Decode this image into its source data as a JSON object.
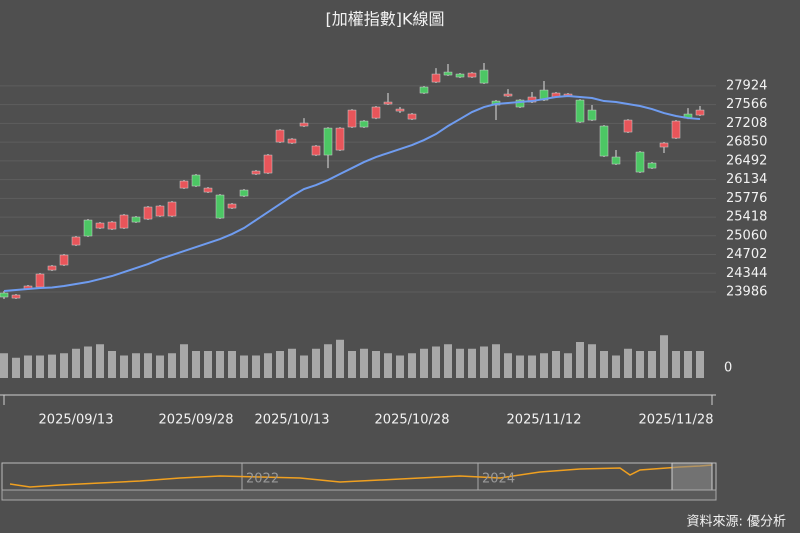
{
  "chart_data": {
    "type": "candlestick",
    "title": "[加權指數]K線圖",
    "source": "資料來源: 優分析",
    "categories": [
      null,
      null,
      null,
      null,
      null,
      null,
      "2025/09/13",
      null,
      null,
      null,
      null,
      null,
      null,
      null,
      null,
      null,
      "2025/09/28",
      null,
      null,
      null,
      null,
      null,
      null,
      null,
      "2025/10/13",
      null,
      null,
      null,
      null,
      null,
      null,
      null,
      null,
      null,
      "2025/10/28",
      null,
      null,
      null,
      null,
      null,
      null,
      null,
      null,
      null,
      null,
      "2025/11/12",
      null,
      null,
      null,
      null,
      null,
      null,
      null,
      null,
      null,
      null,
      "2025/11/28",
      null,
      null
    ],
    "open": [
      23967,
      23871,
      24043,
      24082,
      24406,
      24502,
      24884,
      25361,
      25208,
      25189,
      25208,
      25419,
      25380,
      25438,
      25438,
      25972,
      26221,
      25896,
      25839,
      25590,
      25934,
      26240,
      26259,
      26851,
      26832,
      27157,
      26603,
      27118,
      26698,
      27138,
      27252,
      27309,
      27577,
      27443,
      27290,
      27902,
      27997,
      28188,
      28150,
      28093,
      28226,
      27634,
      27730,
      27653,
      27615,
      27844,
      27711,
      27730,
      27653,
      27462,
      27157,
      26565,
      27042,
      26660,
      26450,
      26756,
      26927,
      27386,
      27367
    ],
    "high": [
      24005,
      23948,
      24120,
      24349,
      24502,
      24712,
      25056,
      25380,
      25323,
      25342,
      25476,
      25438,
      25629,
      25648,
      25724,
      26125,
      26240,
      25992,
      25858,
      25686,
      25953,
      26316,
      26622,
      27099,
      26927,
      27309,
      26794,
      27137,
      27137,
      27481,
      27271,
      27539,
      27787,
      27520,
      27405,
      27921,
      28264,
      28341,
      28169,
      28188,
      28360,
      27653,
      27863,
      27672,
      27806,
      28016,
      27806,
      27787,
      27672,
      27558,
      27176,
      26698,
      27290,
      26679,
      26469,
      26851,
      27271,
      27500,
      27539
    ],
    "low": [
      23852,
      23852,
      24024,
      24062,
      24387,
      24483,
      24865,
      25037,
      25189,
      25170,
      25189,
      25304,
      25361,
      25419,
      25419,
      25953,
      25992,
      25877,
      25380,
      25571,
      25801,
      26221,
      26240,
      26832,
      26813,
      27138,
      26584,
      26354,
      26679,
      27119,
      27119,
      27290,
      27558,
      27405,
      27271,
      27768,
      27978,
      28112,
      28074,
      28074,
      27959,
      27271,
      27711,
      27501,
      27596,
      27634,
      27692,
      27711,
      27214,
      27252,
      26565,
      26412,
      27023,
      26259,
      26335,
      26641,
      26908,
      27290,
      27348
    ],
    "close": [
      23891,
      23929,
      24101,
      24330,
      24483,
      24693,
      25037,
      25056,
      25304,
      25323,
      25457,
      25323,
      25610,
      25629,
      25705,
      26106,
      26011,
      25972,
      25399,
      25667,
      25820,
      26297,
      26603,
      27080,
      26908,
      27214,
      26775,
      26603,
      27118,
      27462,
      27138,
      27520,
      27615,
      27481,
      27386,
      27787,
      28150,
      28131,
      28093,
      28169,
      27978,
      27558,
      27768,
      27520,
      27711,
      27653,
      27787,
      27768,
      27233,
      27271,
      26584,
      26431,
      27271,
      26278,
      26354,
      26832,
      27252,
      27309,
      27462
    ],
    "up_color": "#e8555a",
    "down_color": "#4cc764",
    "ma": {
      "color": "#6f9cf0",
      "values": [
        24005,
        24024,
        24043,
        24062,
        24072,
        24101,
        24139,
        24177,
        24234,
        24292,
        24368,
        24444,
        24521,
        24616,
        24693,
        24769,
        24846,
        24922,
        24998,
        25094,
        25208,
        25361,
        25514,
        25667,
        25820,
        25953,
        26030,
        26125,
        26240,
        26354,
        26469,
        26565,
        26641,
        26717,
        26794,
        26889,
        27004,
        27157,
        27290,
        27424,
        27520,
        27577,
        27596,
        27615,
        27634,
        27672,
        27711,
        27730,
        27711,
        27692,
        27634,
        27615,
        27577,
        27539,
        27481,
        27405,
        27348,
        27309,
        27290
      ]
    },
    "ylim": [
      23490,
      28380
    ],
    "yticks": [
      23986,
      24344,
      24702,
      25060,
      25418,
      25776,
      26134,
      26492,
      26850,
      27208,
      27566,
      27924
    ],
    "grid": true,
    "volume": {
      "color": "#a8a8a8",
      "ylim": [
        0,
        100
      ],
      "yticks": [
        0
      ],
      "values": [
        55,
        45,
        50,
        50,
        52,
        55,
        65,
        70,
        75,
        60,
        50,
        55,
        55,
        50,
        55,
        75,
        60,
        60,
        60,
        60,
        50,
        50,
        55,
        60,
        65,
        50,
        65,
        75,
        85,
        60,
        65,
        60,
        55,
        50,
        55,
        65,
        70,
        75,
        65,
        65,
        70,
        75,
        55,
        50,
        50,
        55,
        60,
        55,
        80,
        75,
        60,
        50,
        65,
        60,
        60,
        95,
        60,
        60,
        60
      ]
    },
    "navigator": {
      "labels": [
        "2022",
        "2024"
      ],
      "color": "#f0a020"
    }
  }
}
